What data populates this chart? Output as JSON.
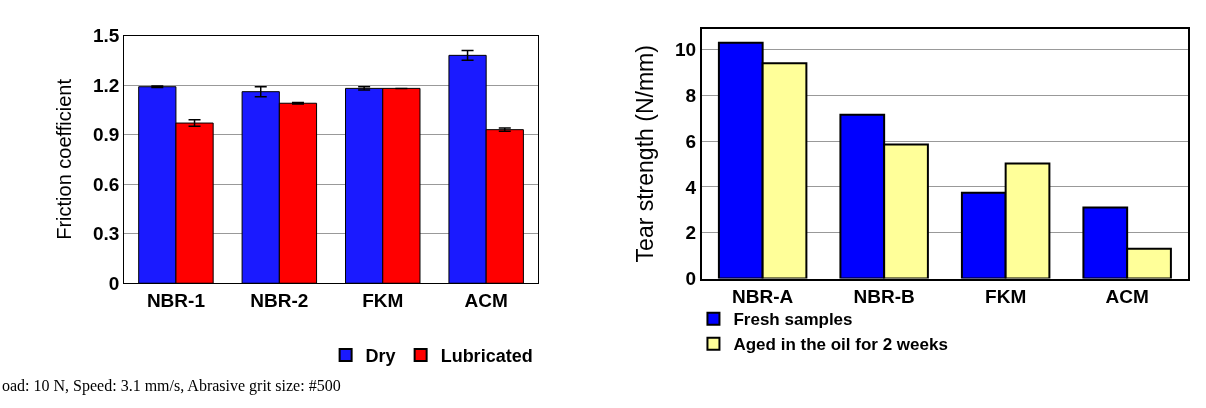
{
  "chart_data": [
    {
      "type": "bar",
      "ylabel": "Friction coefficient",
      "categories": [
        "NBR-1",
        "NBR-2",
        "FKM",
        "ACM"
      ],
      "series": [
        {
          "name": "Dry",
          "color": "#1a1aff",
          "values": [
            1.19,
            1.16,
            1.18,
            1.38
          ],
          "errors": [
            0.005,
            0.03,
            0.01,
            0.03
          ]
        },
        {
          "name": "Lubricated",
          "color": "#ff0000",
          "values": [
            0.97,
            1.09,
            1.18,
            0.93
          ],
          "errors": [
            0.02,
            0.005,
            null,
            0.01
          ]
        }
      ],
      "ylim": [
        0,
        1.5
      ],
      "yticks": [
        0,
        0.3,
        0.6,
        0.9,
        1.2,
        1.5
      ],
      "grid": "y",
      "legend": "bottom",
      "annotations": [
        "oad: 10 N, Speed: 3.1 mm/s, Abrasive grit size: #500"
      ]
    },
    {
      "type": "bar",
      "ylabel": "Tear strength (N/mm)",
      "categories": [
        "NBR-A",
        "NBR-B",
        "FKM",
        "ACM"
      ],
      "series": [
        {
          "name": "Fresh samples",
          "color": "#0000ff",
          "values": [
            10.3,
            7.15,
            3.75,
            3.1
          ]
        },
        {
          "name": "Aged in the oil for 2 weeks",
          "color": "#ffff99",
          "values": [
            9.4,
            5.85,
            5.03,
            1.3
          ]
        }
      ],
      "ylim": [
        0,
        10.9
      ],
      "yticks": [
        0,
        2,
        4,
        6,
        8,
        10
      ],
      "grid": "y",
      "legend": "bottom"
    }
  ]
}
